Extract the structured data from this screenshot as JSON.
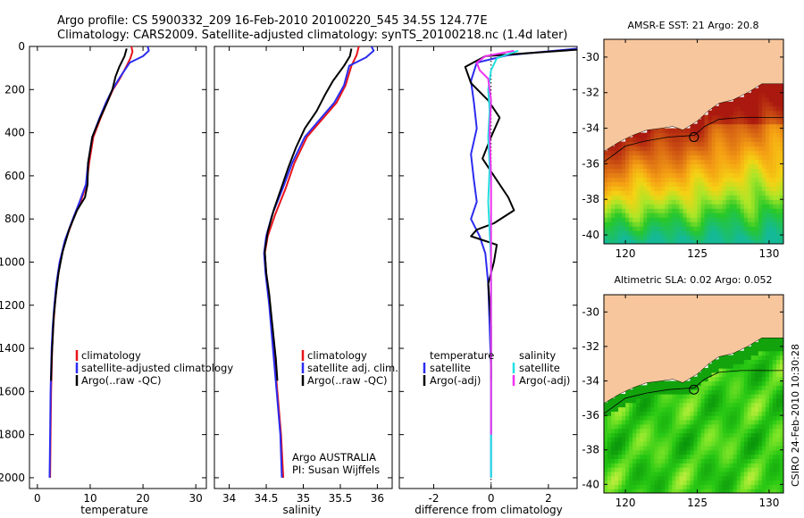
{
  "titles": {
    "line1": "Argo profile: CS 5900332_209 16-Feb-2010 20100220_545 34.5S 124.77E",
    "line2": "Climatology: CARS2009. Satellite-adjusted climatology: synTS_20100218.nc (1.4d later)"
  },
  "footer": {
    "argo": "Argo AUSTRALIA",
    "pi": "PI: Susan Wijffels",
    "stamp": "CSIRO 24-Feb-2010 10:30:28"
  },
  "colors": {
    "climatology": "#e8141b",
    "satellite": "#2c2cf0",
    "argo": "#000000",
    "sal_satellite": "#22e0e0",
    "sal_argo": "#ee33ee",
    "land": "#f7c69c"
  },
  "chart_data": [
    {
      "type": "line",
      "id": "temperature",
      "xlabel": "temperature",
      "ylabel": "",
      "xlim": [
        -1.5,
        32
      ],
      "ylim": [
        2050,
        0
      ],
      "xticks": [
        0,
        10,
        20,
        30
      ],
      "yticks": [
        0,
        200,
        400,
        600,
        800,
        1000,
        1200,
        1400,
        1600,
        1800,
        2000
      ],
      "legend": [
        "climatology",
        "satellite-adjusted climatology",
        "Argo(..raw -QC)"
      ],
      "series": [
        {
          "name": "climatology",
          "color": "#e8141b",
          "points": [
            [
              17.8,
              0
            ],
            [
              18.0,
              25
            ],
            [
              17.6,
              55
            ],
            [
              16.8,
              95
            ],
            [
              15.6,
              150
            ],
            [
              14.3,
              200
            ],
            [
              13.2,
              260
            ],
            [
              12.0,
              330
            ],
            [
              10.6,
              420
            ],
            [
              9.8,
              540
            ],
            [
              9.3,
              640
            ],
            [
              8.2,
              720
            ],
            [
              6.8,
              800
            ],
            [
              5.3,
              900
            ],
            [
              4.3,
              1000
            ],
            [
              3.7,
              1100
            ],
            [
              3.3,
              1200
            ],
            [
              3.0,
              1300
            ],
            [
              2.8,
              1400
            ],
            [
              2.6,
              1600
            ],
            [
              2.5,
              1800
            ],
            [
              2.4,
              2000
            ]
          ]
        },
        {
          "name": "satellite-adjusted climatology",
          "color": "#2c2cf0",
          "points": [
            [
              20.9,
              0
            ],
            [
              21.1,
              20
            ],
            [
              20.0,
              45
            ],
            [
              17.5,
              75
            ],
            [
              15.7,
              140
            ],
            [
              14.2,
              200
            ],
            [
              13.0,
              260
            ],
            [
              11.8,
              330
            ],
            [
              10.4,
              420
            ],
            [
              9.6,
              540
            ],
            [
              9.2,
              640
            ],
            [
              8.0,
              720
            ],
            [
              6.7,
              800
            ],
            [
              5.2,
              900
            ],
            [
              4.2,
              1000
            ],
            [
              3.6,
              1100
            ],
            [
              3.2,
              1200
            ],
            [
              2.9,
              1300
            ],
            [
              2.7,
              1400
            ],
            [
              2.5,
              1600
            ],
            [
              2.4,
              1800
            ],
            [
              2.3,
              2000
            ]
          ]
        },
        {
          "name": "Argo(..raw -QC)",
          "color": "#000000",
          "points": [
            [
              16.9,
              10
            ],
            [
              16.5,
              45
            ],
            [
              15.5,
              95
            ],
            [
              14.8,
              140
            ],
            [
              14.2,
              200
            ],
            [
              13.2,
              260
            ],
            [
              11.9,
              330
            ],
            [
              10.4,
              420
            ],
            [
              9.6,
              540
            ],
            [
              9.5,
              640
            ],
            [
              9.0,
              700
            ],
            [
              7.5,
              760
            ],
            [
              6.0,
              850
            ],
            [
              4.8,
              950
            ],
            [
              4.0,
              1050
            ],
            [
              3.5,
              1150
            ],
            [
              3.1,
              1250
            ],
            [
              2.9,
              1350
            ],
            [
              2.7,
              1450
            ],
            [
              2.6,
              1550
            ]
          ]
        }
      ]
    },
    {
      "type": "line",
      "id": "salinity",
      "xlabel": "salinity",
      "ylabel": "",
      "xlim": [
        33.8,
        36.2
      ],
      "ylim": [
        2050,
        0
      ],
      "xticks": [
        34,
        34.5,
        35,
        35.5,
        36
      ],
      "legend": [
        "climatology",
        "satellite adj. clim.",
        "Argo(..raw -QC)"
      ],
      "series": [
        {
          "name": "climatology",
          "color": "#e8141b",
          "points": [
            [
              35.75,
              0
            ],
            [
              35.72,
              40
            ],
            [
              35.65,
              90
            ],
            [
              35.57,
              180
            ],
            [
              35.45,
              260
            ],
            [
              35.25,
              340
            ],
            [
              35.05,
              420
            ],
            [
              34.88,
              540
            ],
            [
              34.76,
              660
            ],
            [
              34.62,
              780
            ],
            [
              34.52,
              880
            ],
            [
              34.48,
              960
            ],
            [
              34.5,
              1050
            ],
            [
              34.55,
              1200
            ],
            [
              34.6,
              1400
            ],
            [
              34.65,
              1600
            ],
            [
              34.7,
              1800
            ],
            [
              34.73,
              2000
            ]
          ]
        },
        {
          "name": "satellite adj. clim.",
          "color": "#2c2cf0",
          "points": [
            [
              35.92,
              0
            ],
            [
              35.95,
              20
            ],
            [
              35.85,
              50
            ],
            [
              35.62,
              90
            ],
            [
              35.55,
              180
            ],
            [
              35.42,
              260
            ],
            [
              35.22,
              340
            ],
            [
              35.02,
              420
            ],
            [
              34.85,
              540
            ],
            [
              34.72,
              660
            ],
            [
              34.58,
              780
            ],
            [
              34.5,
              880
            ],
            [
              34.47,
              960
            ],
            [
              34.49,
              1050
            ],
            [
              34.54,
              1200
            ],
            [
              34.59,
              1400
            ],
            [
              34.64,
              1600
            ],
            [
              34.69,
              1800
            ],
            [
              34.71,
              2000
            ]
          ]
        },
        {
          "name": "Argo(..raw -QC)",
          "color": "#000000",
          "points": [
            [
              35.65,
              10
            ],
            [
              35.63,
              45
            ],
            [
              35.55,
              90
            ],
            [
              35.4,
              160
            ],
            [
              35.3,
              220
            ],
            [
              35.18,
              300
            ],
            [
              35.02,
              380
            ],
            [
              34.9,
              470
            ],
            [
              34.8,
              560
            ],
            [
              34.7,
              660
            ],
            [
              34.6,
              760
            ],
            [
              34.52,
              860
            ],
            [
              34.48,
              950
            ],
            [
              34.5,
              1050
            ],
            [
              34.54,
              1150
            ],
            [
              34.57,
              1250
            ],
            [
              34.6,
              1350
            ],
            [
              34.63,
              1450
            ],
            [
              34.65,
              1550
            ]
          ]
        }
      ]
    },
    {
      "type": "line",
      "id": "difference",
      "xlabel": "difference from climatology",
      "ylabel": "",
      "xlim": [
        -3.2,
        3.0
      ],
      "ylim": [
        2050,
        0
      ],
      "xticks": [
        -2,
        0,
        2
      ],
      "legend": [
        "temperature satellite",
        "temperature Argo(-adj)",
        "salinity satellite",
        "salinity Argo(-adj)"
      ],
      "legend_heads": [
        "temperature",
        "salinity"
      ],
      "legend_labels": [
        "satellite",
        "Argo(-adj)"
      ],
      "series": [
        {
          "name": "temperature satellite",
          "color": "#2c2cf0",
          "points": [
            [
              3.0,
              10
            ],
            [
              0.6,
              40
            ],
            [
              -0.5,
              75
            ],
            [
              -0.7,
              160
            ],
            [
              -0.6,
              260
            ],
            [
              -0.5,
              380
            ],
            [
              -0.7,
              500
            ],
            [
              -0.6,
              620
            ],
            [
              -0.5,
              720
            ],
            [
              -0.7,
              800
            ],
            [
              -0.4,
              880
            ],
            [
              -0.2,
              960
            ],
            [
              -0.1,
              1100
            ],
            [
              -0.05,
              1300
            ],
            [
              0,
              1500
            ],
            [
              0,
              1700
            ],
            [
              0,
              1900
            ],
            [
              0,
              2000
            ]
          ]
        },
        {
          "name": "temperature Argo(-adj)",
          "color": "#000000",
          "points": [
            [
              3.0,
              15
            ],
            [
              -0.2,
              45
            ],
            [
              -0.9,
              95
            ],
            [
              -0.7,
              170
            ],
            [
              -0.1,
              250
            ],
            [
              0.3,
              330
            ],
            [
              0.0,
              420
            ],
            [
              -0.3,
              520
            ],
            [
              0.2,
              620
            ],
            [
              0.6,
              700
            ],
            [
              0.8,
              760
            ],
            [
              0.1,
              820
            ],
            [
              -0.5,
              850
            ],
            [
              -0.7,
              880
            ],
            [
              0.2,
              920
            ],
            [
              0.1,
              1000
            ],
            [
              -0.1,
              1100
            ],
            [
              0.0,
              1300
            ],
            [
              0.0,
              1550
            ]
          ]
        },
        {
          "name": "salinity satellite",
          "color": "#22e0e0",
          "points": [
            [
              0.95,
              20
            ],
            [
              0.6,
              35
            ],
            [
              0.2,
              55
            ],
            [
              0.0,
              110
            ],
            [
              -0.1,
              200
            ],
            [
              -0.05,
              300
            ],
            [
              -0.1,
              420
            ],
            [
              -0.05,
              560
            ],
            [
              -0.1,
              720
            ],
            [
              -0.05,
              860
            ],
            [
              0,
              1000
            ],
            [
              0,
              1300
            ],
            [
              0,
              1600
            ],
            [
              0,
              1900
            ],
            [
              0,
              2000
            ]
          ]
        },
        {
          "name": "salinity Argo(-adj)",
          "color": "#ee33ee",
          "points": [
            [
              0.8,
              20
            ],
            [
              -0.2,
              45
            ],
            [
              -0.5,
              75
            ],
            [
              -0.4,
              110
            ],
            [
              -0.1,
              150
            ],
            [
              0.0,
              250
            ],
            [
              -0.05,
              400
            ],
            [
              0.0,
              600
            ],
            [
              0.0,
              900
            ],
            [
              0.0,
              1300
            ],
            [
              0.0,
              1600
            ],
            [
              0.0,
              1800
            ]
          ]
        }
      ]
    },
    {
      "type": "heatmap",
      "id": "sst_map",
      "title": "AMSR-E SST: 21 Argo: 20.8",
      "xlim": [
        118.5,
        131
      ],
      "ylim": [
        -40.5,
        -29
      ],
      "xticks": [
        120,
        125,
        130
      ],
      "yticks": [
        -30,
        -32,
        -34,
        -36,
        -38,
        -40
      ],
      "float_position": {
        "lon": 124.77,
        "lat": -34.5
      }
    },
    {
      "type": "heatmap",
      "id": "sla_map",
      "title": "Altimetric SLA: 0.02 Argo: 0.052",
      "xlim": [
        118.5,
        131
      ],
      "ylim": [
        -40.5,
        -29
      ],
      "xticks": [
        120,
        125,
        130
      ],
      "yticks": [
        -30,
        -32,
        -34,
        -36,
        -38,
        -40
      ],
      "float_position": {
        "lon": 124.77,
        "lat": -34.5
      }
    }
  ]
}
